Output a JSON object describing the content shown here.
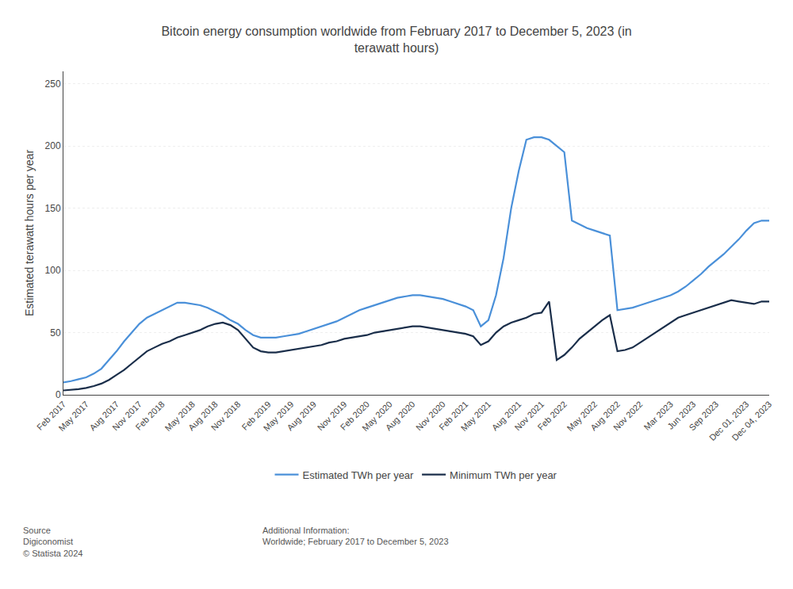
{
  "chart_data": {
    "type": "line",
    "title": "Bitcoin energy consumption worldwide from February 2017 to December 5, 2023 (in\nterawatt hours)",
    "y_label": "Estimated terawatt hours per year",
    "categories": [
      "Feb 2017",
      null,
      null,
      "May 2017",
      null,
      null,
      null,
      "Aug 2017",
      null,
      null,
      "Nov 2017",
      null,
      null,
      "Feb 2018",
      null,
      null,
      null,
      "May 2018",
      null,
      null,
      "Aug 2018",
      null,
      null,
      "Nov 2018",
      null,
      null,
      null,
      "Feb 2019",
      null,
      null,
      "May 2019",
      null,
      null,
      "Aug 2019",
      null,
      null,
      null,
      "Nov 2019",
      null,
      null,
      "Feb 2020",
      null,
      null,
      "May 2020",
      null,
      null,
      "Aug 2020",
      null,
      null,
      null,
      "Nov 2020",
      null,
      null,
      "Feb 2021",
      null,
      null,
      "May 2021",
      null,
      null,
      null,
      "Aug 2021",
      null,
      null,
      "Nov 2021",
      null,
      null,
      "Feb 2022",
      null,
      null,
      null,
      "May 2022",
      null,
      null,
      "Aug 2022",
      null,
      null,
      "Nov 2022",
      null,
      null,
      null,
      "Mar 2023",
      null,
      null,
      "Jun 2023",
      null,
      null,
      "Sep 2023",
      null,
      null,
      null,
      "Dec 01, 2023",
      null,
      null,
      "Dec 04, 2023"
    ],
    "series": [
      {
        "name": "Estimated TWh per year",
        "color": "#4a90d9",
        "values": [
          10.0,
          11.0,
          12.5,
          14.0,
          17.0,
          21.0,
          28.0,
          35.0,
          43.0,
          50.0,
          57.0,
          62.0,
          65.0,
          68.0,
          71.0,
          74.0,
          74.0,
          73.0,
          72.0,
          70.0,
          67.0,
          64.0,
          60.0,
          57.0,
          52.0,
          48.0,
          46.0,
          46.0,
          46.0,
          47.0,
          48.0,
          49.0,
          51.0,
          53.0,
          55.0,
          57.0,
          59.0,
          62.0,
          65.0,
          68.0,
          70.0,
          72.0,
          74.0,
          76.0,
          78.0,
          79.0,
          80.0,
          80.0,
          79.0,
          78.0,
          77.0,
          75.0,
          73.0,
          71.0,
          68.0,
          55.0,
          60.0,
          80.0,
          110.0,
          150.0,
          180.0,
          205.0,
          207.0,
          207.0,
          205.0,
          200.0,
          195.0,
          140.0,
          137.0,
          134.0,
          132.0,
          130.0,
          128.0,
          68.0,
          69.0,
          70.0,
          72.0,
          74.0,
          76.0,
          78.0,
          80.0,
          83.0,
          87.0,
          92.0,
          97.0,
          103.0,
          108.0,
          113.0,
          119.0,
          125.0,
          132.0,
          138.0,
          140.0,
          140.0
        ]
      },
      {
        "name": "Minimum TWh per year",
        "color": "#1a2e4a",
        "values": [
          3.5,
          4.0,
          4.5,
          5.5,
          7.0,
          9.0,
          12.0,
          16.0,
          20.0,
          25.0,
          30.0,
          35.0,
          38.0,
          41.0,
          43.0,
          46.0,
          48.0,
          50.0,
          52.0,
          55.0,
          57.0,
          58.0,
          56.0,
          52.0,
          45.0,
          38.0,
          35.0,
          34.0,
          34.0,
          35.0,
          36.0,
          37.0,
          38.0,
          39.0,
          40.0,
          42.0,
          43.0,
          45.0,
          46.0,
          47.0,
          48.0,
          50.0,
          51.0,
          52.0,
          53.0,
          54.0,
          55.0,
          55.0,
          54.0,
          53.0,
          52.0,
          51.0,
          50.0,
          49.0,
          47.0,
          40.0,
          43.0,
          50.0,
          55.0,
          58.0,
          60.0,
          62.0,
          65.0,
          66.0,
          75.0,
          28.0,
          32.0,
          38.0,
          45.0,
          50.0,
          55.0,
          60.0,
          64.0,
          35.0,
          36.0,
          38.0,
          42.0,
          46.0,
          50.0,
          54.0,
          58.0,
          62.0,
          64.0,
          66.0,
          68.0,
          70.0,
          72.0,
          74.0,
          76.0,
          75.0,
          74.0,
          73.0,
          75.0,
          75.0
        ]
      }
    ],
    "ylim": [
      0,
      260
    ],
    "yticks": [
      0,
      50,
      100,
      150,
      200,
      250
    ],
    "grid": true,
    "legend": "bottom",
    "annotations": [
      "Source\nDigiconomist\n© Statista 2024",
      "Additional Information:\nWorldwide; February 2017 to December 5, 2023"
    ]
  }
}
